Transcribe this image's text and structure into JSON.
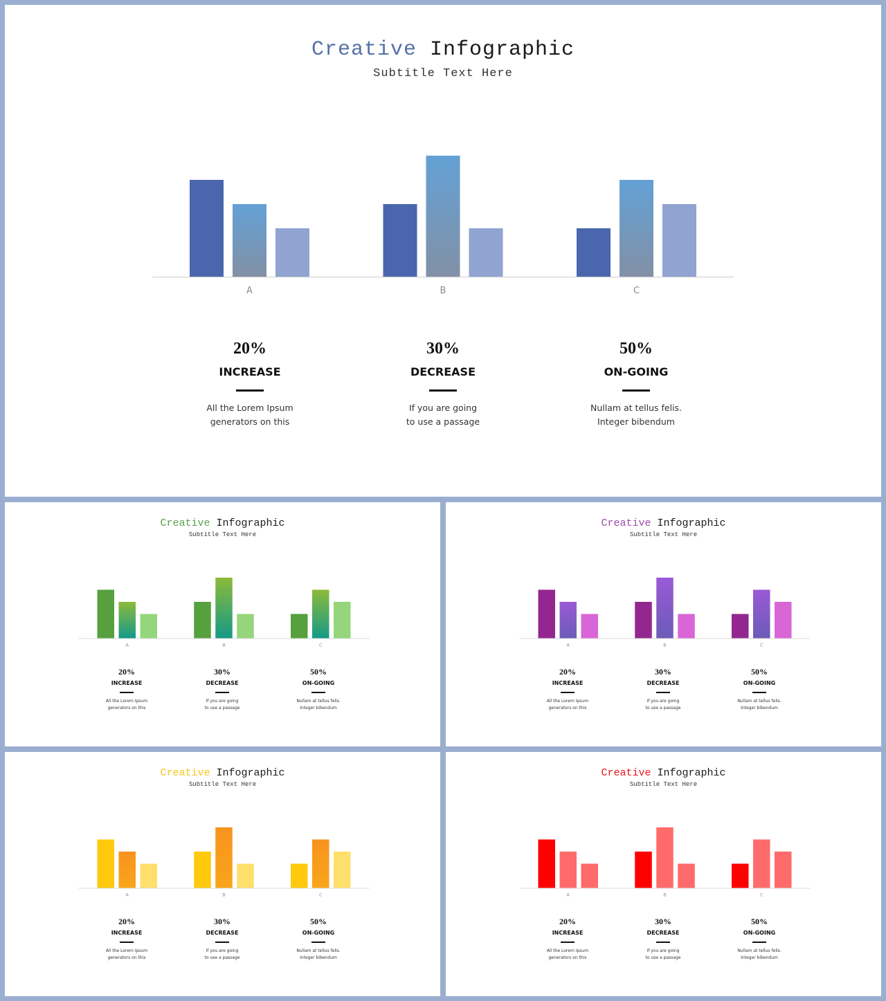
{
  "slides": [
    {
      "id": "main",
      "title_accent": "Creative",
      "title_rest": "Infographic",
      "subtitle": "Subtitle Text Here",
      "accent_color": "#5571a8",
      "chart_data": {
        "type": "bar",
        "categories": [
          "A",
          "B",
          "C"
        ],
        "series": [
          {
            "values": [
              4,
              3,
              2
            ]
          },
          {
            "values": [
              3,
              5,
              4
            ]
          },
          {
            "values": [
              2,
              2,
              3
            ]
          }
        ],
        "ylim": [
          0,
          5
        ],
        "colors": [
          [
            "#4a66ad",
            "#4a66ad"
          ],
          [
            "#63a1d5",
            "#8290a6"
          ],
          [
            "#90a3d1",
            "#90a3d1"
          ]
        ]
      },
      "stats": [
        {
          "value": "20%",
          "label": "INCREASE",
          "desc_line1": "All the Lorem Ipsum",
          "desc_line2": "generators on this"
        },
        {
          "value": "30%",
          "label": "DECREASE",
          "desc_line1": "If you are going",
          "desc_line2": "to use a passage"
        },
        {
          "value": "50%",
          "label": "ON-GOING",
          "desc_line1": "Nullam at tellus felis.",
          "desc_line2": "Integer bibendum"
        }
      ]
    },
    {
      "id": "green",
      "title_accent": "Creative",
      "title_rest": "Infographic",
      "subtitle": "Subtitle Text Here",
      "accent_color": "#5aa04a",
      "chart_data": {
        "type": "bar",
        "categories": [
          "A",
          "B",
          "C"
        ],
        "series": [
          {
            "values": [
              4,
              3,
              2
            ]
          },
          {
            "values": [
              3,
              5,
              4
            ]
          },
          {
            "values": [
              2,
              2,
              3
            ]
          }
        ],
        "ylim": [
          0,
          5
        ],
        "colors": [
          [
            "#56a03d",
            "#56a03d"
          ],
          [
            "#8dba3a",
            "#159a88"
          ],
          [
            "#95d67c",
            "#95d67c"
          ]
        ]
      },
      "stats": [
        {
          "value": "20%",
          "label": "INCREASE",
          "desc_line1": "All the Lorem Ipsum",
          "desc_line2": "generators on this"
        },
        {
          "value": "30%",
          "label": "DECREASE",
          "desc_line1": "If you are going",
          "desc_line2": "to use a passage"
        },
        {
          "value": "50%",
          "label": "ON-GOING",
          "desc_line1": "Nullam at tellus felis.",
          "desc_line2": "Integer bibendum"
        }
      ]
    },
    {
      "id": "purple",
      "title_accent": "Creative",
      "title_rest": "Infographic",
      "subtitle": "Subtitle Text Here",
      "accent_color": "#9b4aa8",
      "chart_data": {
        "type": "bar",
        "categories": [
          "A",
          "B",
          "C"
        ],
        "series": [
          {
            "values": [
              4,
              3,
              2
            ]
          },
          {
            "values": [
              3,
              5,
              4
            ]
          },
          {
            "values": [
              2,
              2,
              3
            ]
          }
        ],
        "ylim": [
          0,
          5
        ],
        "colors": [
          [
            "#93278f",
            "#93278f"
          ],
          [
            "#9b59d6",
            "#6b5cb8"
          ],
          [
            "#d966d6",
            "#d966d6"
          ]
        ]
      },
      "stats": [
        {
          "value": "20%",
          "label": "INCREASE",
          "desc_line1": "All the Lorem Ipsum",
          "desc_line2": "generators on this"
        },
        {
          "value": "30%",
          "label": "DECREASE",
          "desc_line1": "If you are going",
          "desc_line2": "to use a passage"
        },
        {
          "value": "50%",
          "label": "ON-GOING",
          "desc_line1": "Nullam at tellus felis.",
          "desc_line2": "Integer bibendum"
        }
      ]
    },
    {
      "id": "yellow",
      "title_accent": "Creative",
      "title_rest": "Infographic",
      "subtitle": "Subtitle Text Here",
      "accent_color": "#f5c518",
      "chart_data": {
        "type": "bar",
        "categories": [
          "A",
          "B",
          "C"
        ],
        "series": [
          {
            "values": [
              4,
              3,
              2
            ]
          },
          {
            "values": [
              3,
              5,
              4
            ]
          },
          {
            "values": [
              2,
              2,
              3
            ]
          }
        ],
        "ylim": [
          0,
          5
        ],
        "colors": [
          [
            "#ffc90e",
            "#ffc90e"
          ],
          [
            "#f7931e",
            "#f9a51a"
          ],
          [
            "#ffdf6b",
            "#ffdf6b"
          ]
        ]
      },
      "stats": [
        {
          "value": "20%",
          "label": "INCREASE",
          "desc_line1": "All the Lorem Ipsum",
          "desc_line2": "generators on this"
        },
        {
          "value": "30%",
          "label": "DECREASE",
          "desc_line1": "If you are going",
          "desc_line2": "to use a passage"
        },
        {
          "value": "50%",
          "label": "ON-GOING",
          "desc_line1": "Nullam at tellus felis.",
          "desc_line2": "Integer bibendum"
        }
      ]
    },
    {
      "id": "red",
      "title_accent": "Creative",
      "title_rest": "Infographic",
      "subtitle": "Subtitle Text Here",
      "accent_color": "#e8141c",
      "chart_data": {
        "type": "bar",
        "categories": [
          "A",
          "B",
          "C"
        ],
        "series": [
          {
            "values": [
              4,
              3,
              2
            ]
          },
          {
            "values": [
              3,
              5,
              4
            ]
          },
          {
            "values": [
              2,
              2,
              3
            ]
          }
        ],
        "ylim": [
          0,
          5
        ],
        "colors": [
          [
            "#ff0000",
            "#ff0000"
          ],
          [
            "#ff6b6b",
            "#ff6b6b"
          ],
          [
            "#ff6b6b",
            "#ff6b6b"
          ]
        ]
      },
      "stats": [
        {
          "value": "20%",
          "label": "INCREASE",
          "desc_line1": "All the Lorem Ipsum",
          "desc_line2": "generators on this"
        },
        {
          "value": "30%",
          "label": "DECREASE",
          "desc_line1": "If you are going",
          "desc_line2": "to use a passage"
        },
        {
          "value": "50%",
          "label": "ON-GOING",
          "desc_line1": "Nullam at tellus felis.",
          "desc_line2": "Integer bibendum"
        }
      ]
    }
  ]
}
